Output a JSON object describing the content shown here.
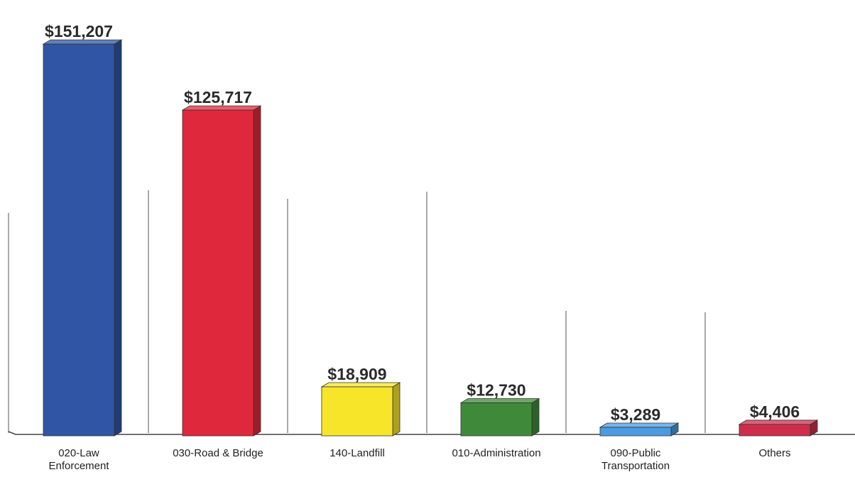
{
  "chart_data": {
    "type": "bar",
    "categories": [
      "020-Law Enforcement",
      "030-Road & Bridge",
      "140-Landfill",
      "010-Administration",
      "090-Public Transportation",
      "Others"
    ],
    "category_label_lines": [
      [
        "020-Law",
        "Enforcement"
      ],
      [
        "030-Road & Bridge"
      ],
      [
        "140-Landfill"
      ],
      [
        "010-Administration"
      ],
      [
        "090-Public",
        "Transportation"
      ],
      [
        "Others"
      ]
    ],
    "values": [
      151207,
      125717,
      18909,
      12730,
      3289,
      4406
    ],
    "value_labels": [
      "$151,207",
      "$125,717",
      "$18,909",
      "$12,730",
      "$3,289",
      "$4,406"
    ],
    "colors": [
      "#2f55a4",
      "#e0283c",
      "#f7e52a",
      "#3f8a3a",
      "#4a9be0",
      "#cf2d4c"
    ],
    "ylim": [
      0,
      160000
    ],
    "grid": "vertical dividers",
    "legend": "none",
    "title": "",
    "xlabel": "",
    "ylabel": ""
  }
}
